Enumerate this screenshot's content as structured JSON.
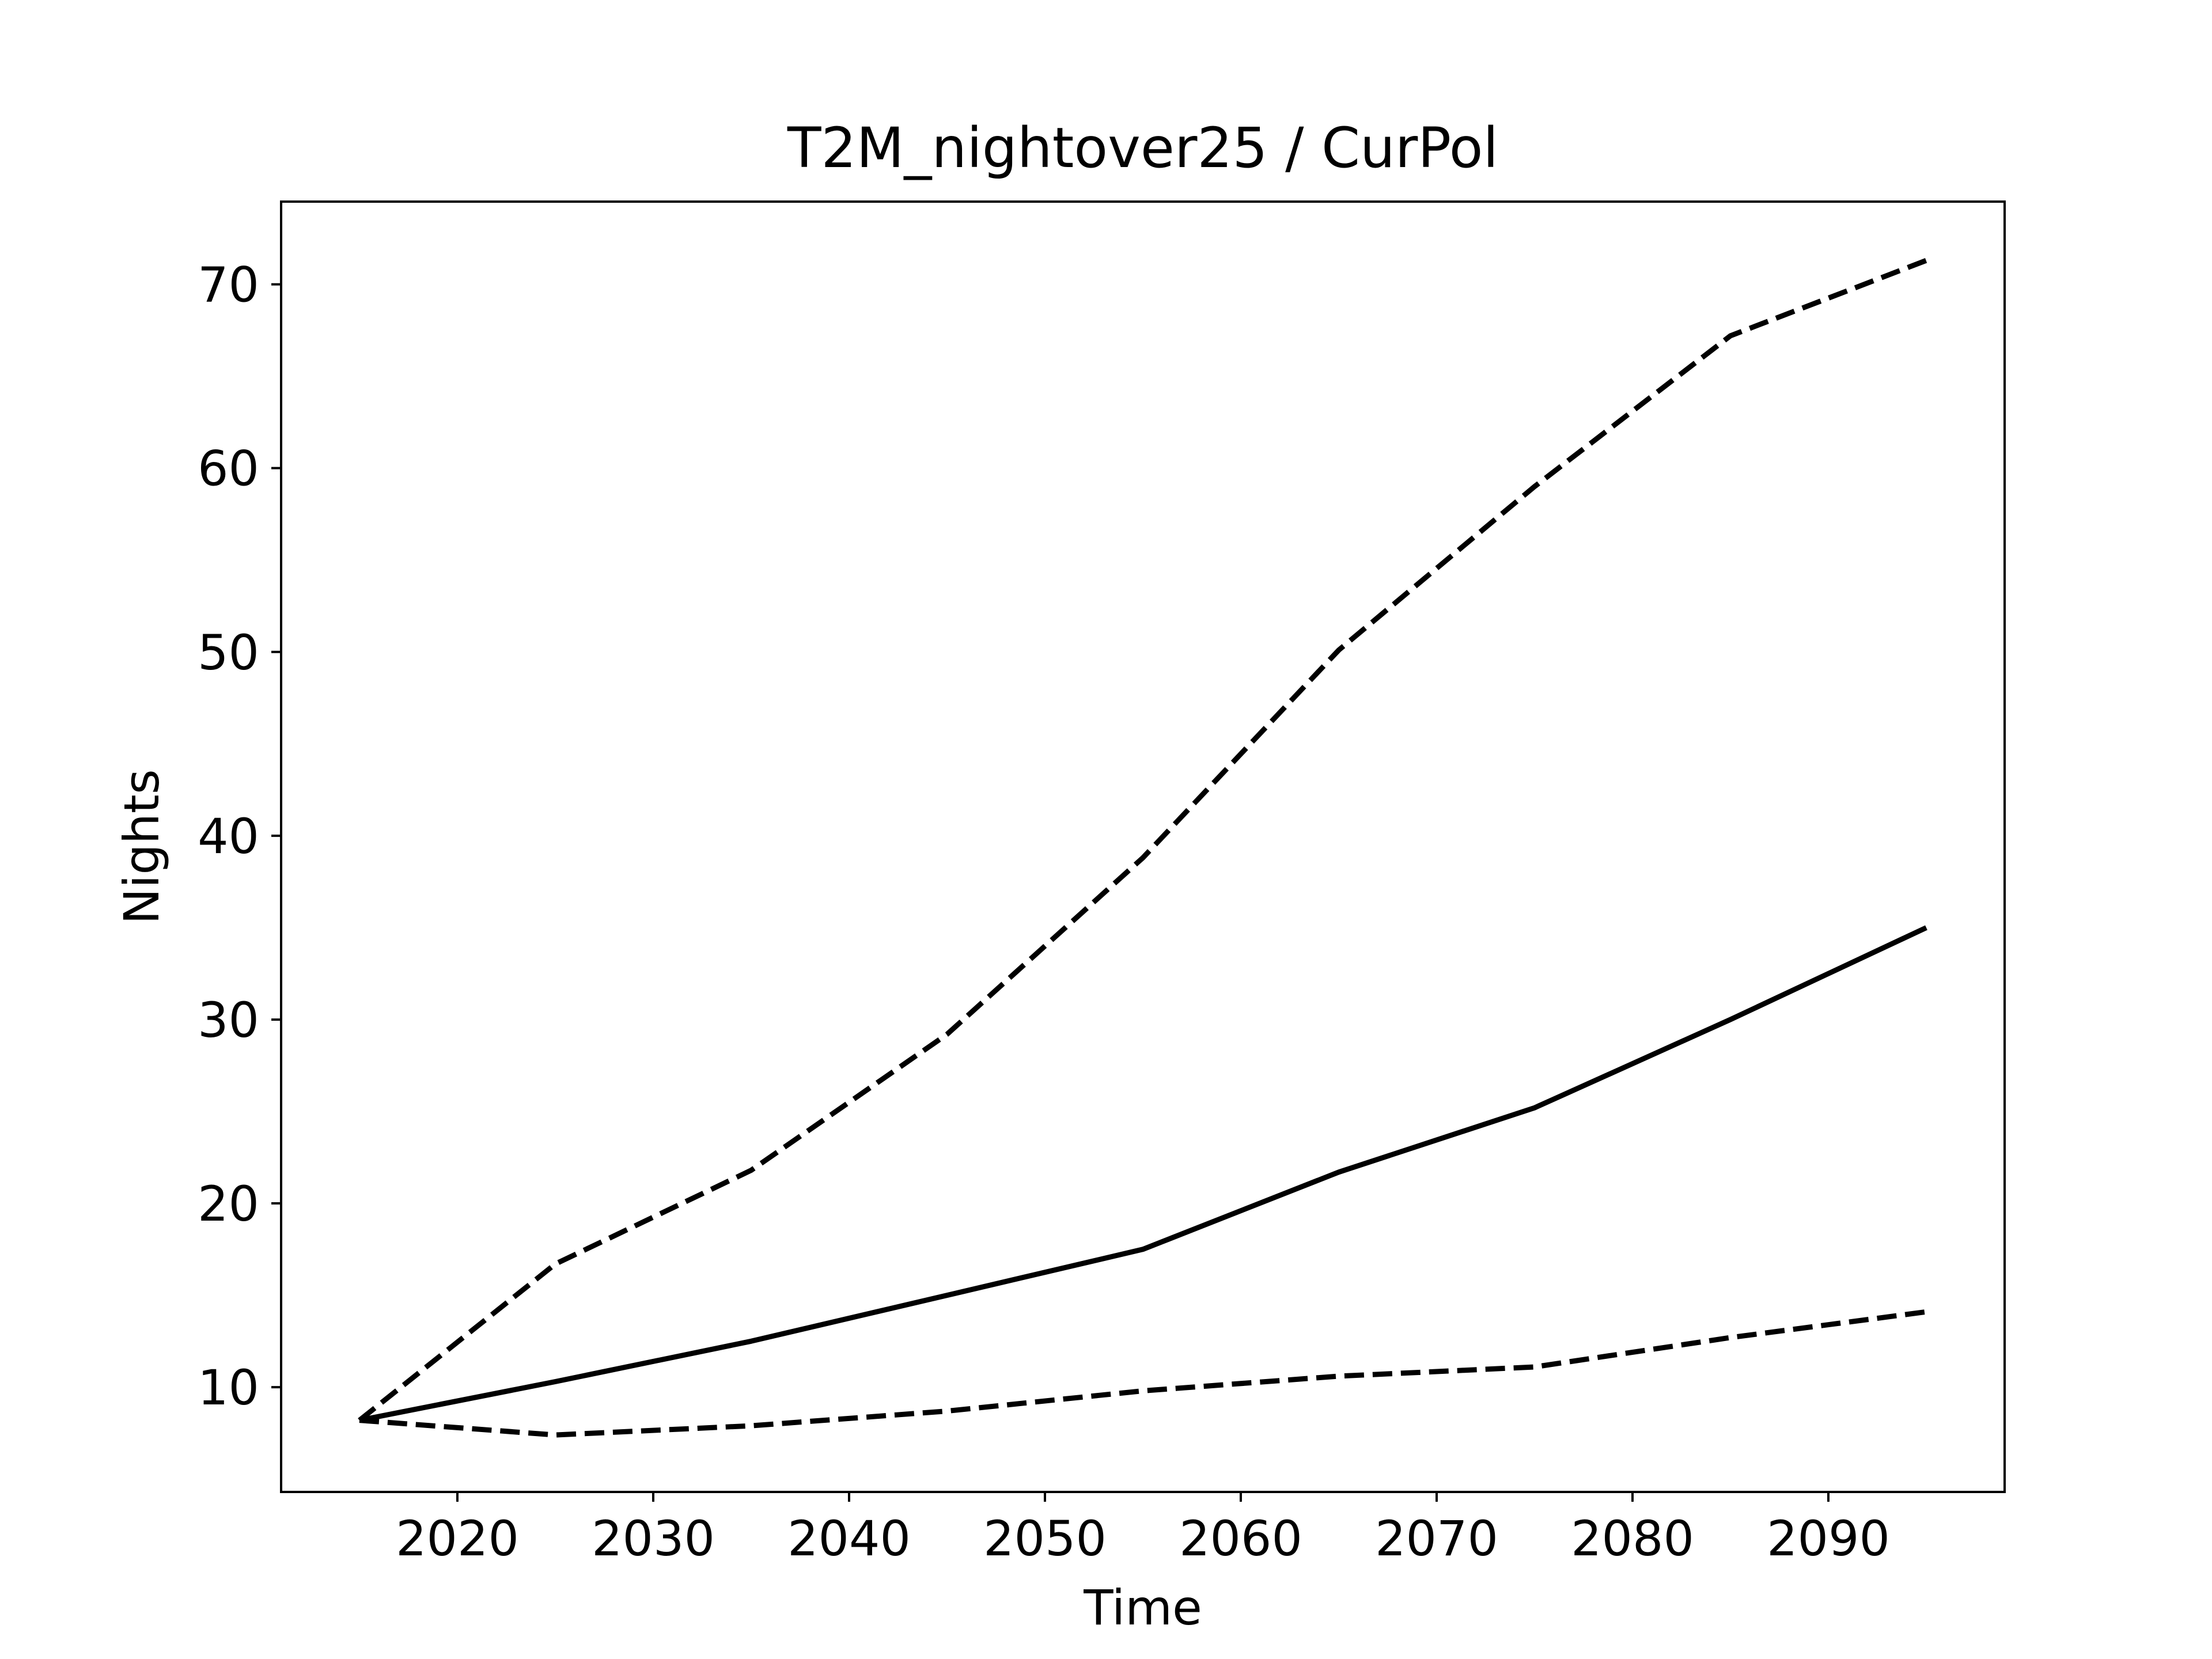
{
  "chart_data": {
    "type": "line",
    "title": "T2M_nightover25 / CurPol",
    "xlabel": "Time",
    "ylabel": "Nights",
    "xlim": [
      2011,
      2099
    ],
    "ylim": [
      4.3,
      74.5
    ],
    "xticks": [
      2020,
      2030,
      2040,
      2050,
      2060,
      2070,
      2080,
      2090
    ],
    "yticks": [
      10,
      20,
      30,
      40,
      50,
      60,
      70
    ],
    "grid": false,
    "legend": "none",
    "colors": {
      "line": "#000000",
      "background": "#ffffff"
    },
    "x": [
      2015,
      2025,
      2035,
      2045,
      2055,
      2065,
      2075,
      2085,
      2095
    ],
    "series": [
      {
        "style": "dashed",
        "values": [
          8.2,
          16.7,
          21.8,
          29.2,
          38.8,
          50.1,
          59.0,
          67.2,
          71.3
        ]
      },
      {
        "style": "solid",
        "values": [
          8.2,
          10.3,
          12.5,
          15.0,
          17.5,
          21.7,
          25.2,
          30.0,
          35.0
        ]
      },
      {
        "style": "dashed",
        "values": [
          8.2,
          7.4,
          7.9,
          8.7,
          9.8,
          10.6,
          11.1,
          12.7,
          14.1
        ]
      }
    ]
  }
}
